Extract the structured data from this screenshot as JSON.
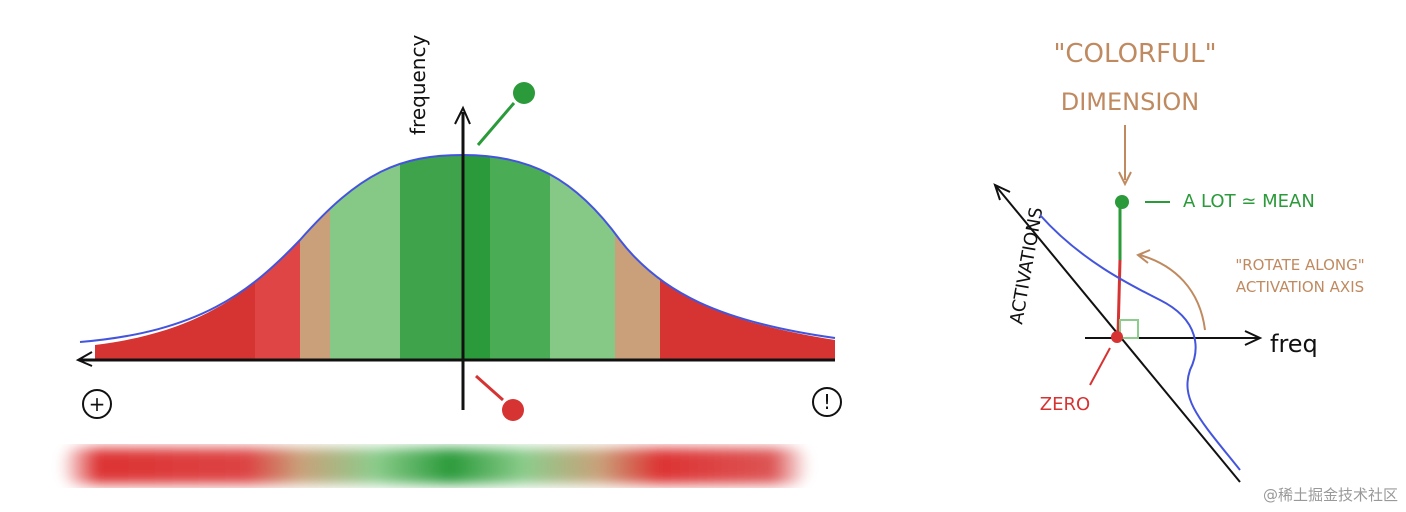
{
  "left_plot": {
    "y_axis_label": "frequency",
    "left_symbol": "+",
    "right_symbol": "!"
  },
  "right_plot": {
    "title_line1": "\"COLORFUL\"",
    "title_line2": "DIMENSION",
    "mean_note": "A LOT ≃ MEAN",
    "rotate_line1": "\"ROTATE ALONG\"",
    "rotate_line2": "ACTIVATION AXIS",
    "diagonal_axis_label": "ACTIVATIONS",
    "horizontal_axis_label": "freq",
    "zero_label": "ZERO"
  },
  "watermark": "@稀土掘金技术社区"
}
